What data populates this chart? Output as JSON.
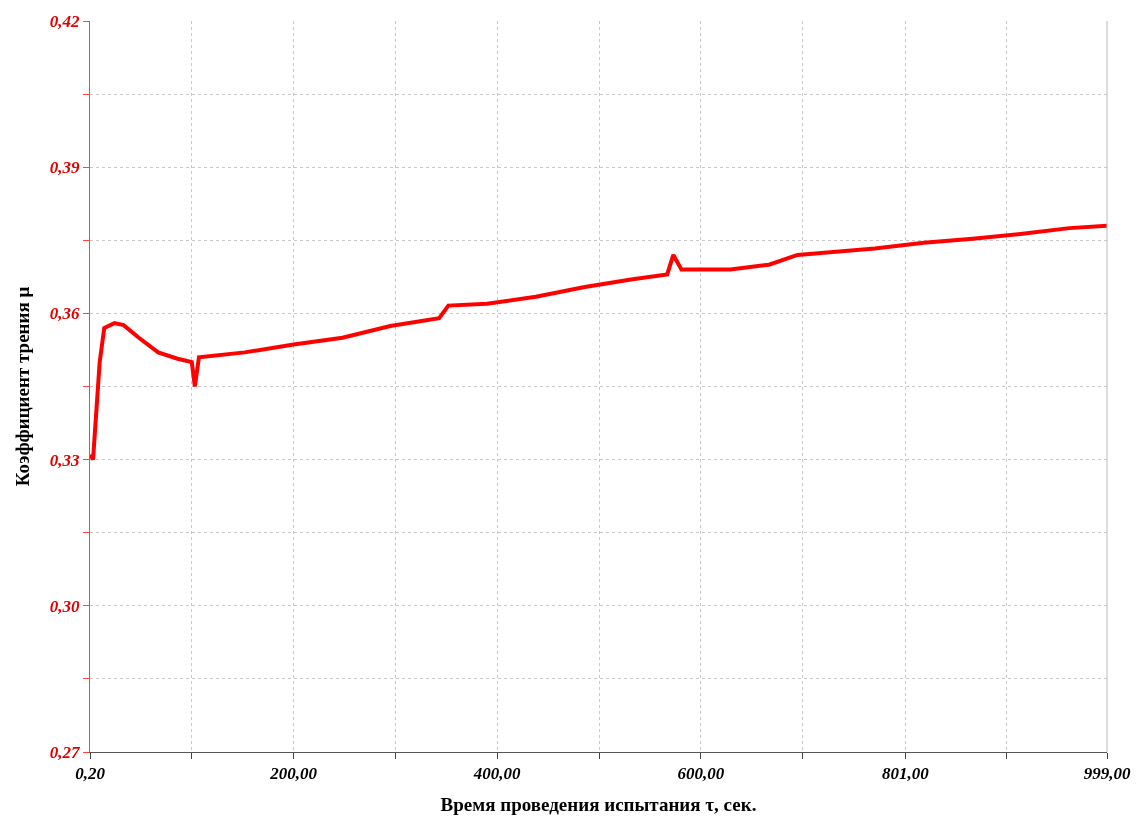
{
  "chart_data": {
    "type": "line",
    "xlabel": "Время проведения испытания τ, сек.",
    "ylabel": "Коэффициент трения μ",
    "xlim": [
      0,
      999
    ],
    "ylim": [
      0.27,
      0.42
    ],
    "xticks": [
      {
        "value": 0.2,
        "label": "0,20"
      },
      {
        "value": 100,
        "label": null
      },
      {
        "value": 200,
        "label": "200,00"
      },
      {
        "value": 300,
        "label": null
      },
      {
        "value": 400,
        "label": "400,00"
      },
      {
        "value": 500,
        "label": null
      },
      {
        "value": 600,
        "label": "600,00"
      },
      {
        "value": 700,
        "label": null
      },
      {
        "value": 801,
        "label": "801,00"
      },
      {
        "value": 900,
        "label": null
      },
      {
        "value": 999,
        "label": "999,00"
      }
    ],
    "yticks": [
      {
        "value": 0.27,
        "label": "0,27"
      },
      {
        "value": 0.285,
        "label": null
      },
      {
        "value": 0.3,
        "label": "0,30"
      },
      {
        "value": 0.315,
        "label": null
      },
      {
        "value": 0.33,
        "label": "0,33"
      },
      {
        "value": 0.345,
        "label": null
      },
      {
        "value": 0.36,
        "label": "0,36"
      },
      {
        "value": 0.375,
        "label": null
      },
      {
        "value": 0.39,
        "label": "0,39"
      },
      {
        "value": 0.405,
        "label": null
      },
      {
        "value": 0.42,
        "label": "0,42"
      }
    ],
    "grid": true,
    "marker": "none",
    "line_style": "solid",
    "series": [
      {
        "color": "#ff0000",
        "x": [
          0.2,
          3,
          9.5,
          14,
          24,
          33,
          48,
          67,
          86,
          100,
          103,
          107,
          152,
          200,
          248,
          295,
          343,
          352,
          390,
          438,
          486,
          533,
          567,
          573,
          581,
          629,
          667,
          695,
          771,
          819,
          867,
          914,
          962,
          999
        ],
        "values": [
          0.331,
          0.33,
          0.35,
          0.357,
          0.358,
          0.3576,
          0.355,
          0.352,
          0.3507,
          0.35,
          0.345,
          0.351,
          0.352,
          0.3536,
          0.355,
          0.3574,
          0.359,
          0.3616,
          0.362,
          0.3634,
          0.3654,
          0.367,
          0.368,
          0.372,
          0.369,
          0.369,
          0.37,
          0.372,
          0.3733,
          0.3745,
          0.3753,
          0.3763,
          0.3775,
          0.378
        ]
      }
    ]
  }
}
